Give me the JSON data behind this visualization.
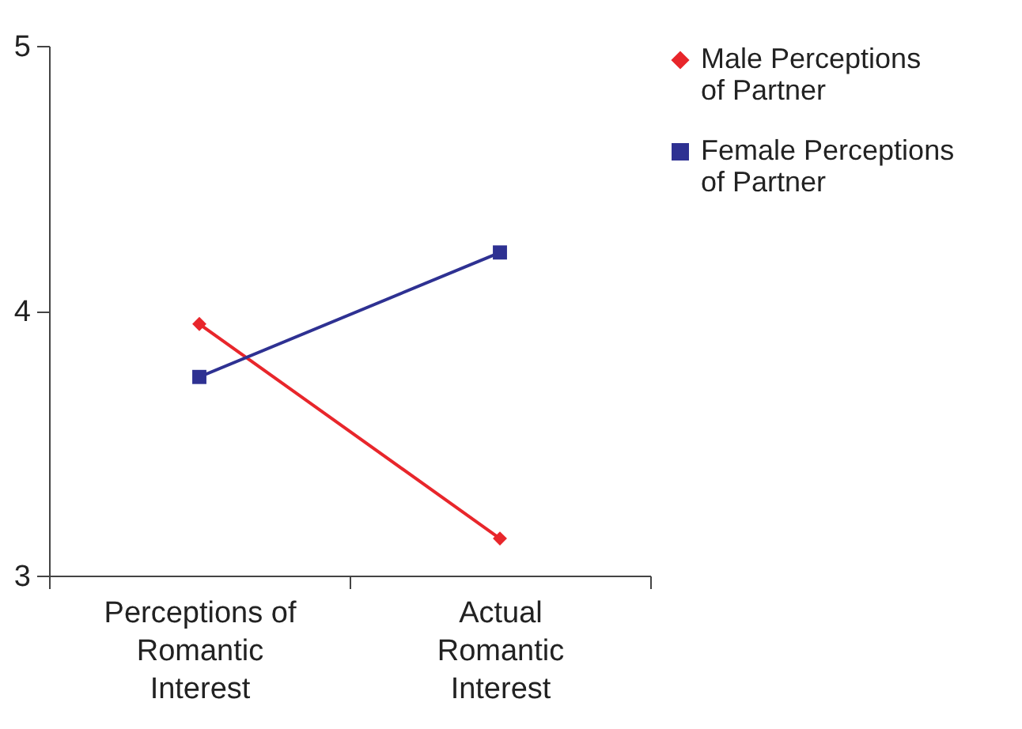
{
  "chart_data": {
    "type": "line",
    "categories": [
      "Perceptions of Romantic Interest",
      "Actual Romantic Interest"
    ],
    "series": [
      {
        "name": "Male Perceptions of Partner",
        "color": "#e8262b",
        "marker": "diamond",
        "values": [
          3.95,
          3.14
        ]
      },
      {
        "name": "Female Perceptions of Partner",
        "color": "#2e3192",
        "marker": "square",
        "values": [
          3.75,
          4.22
        ]
      }
    ],
    "ylim": [
      3,
      5
    ],
    "yticks": [
      3,
      4,
      5
    ],
    "grid": false,
    "legend": "right"
  }
}
